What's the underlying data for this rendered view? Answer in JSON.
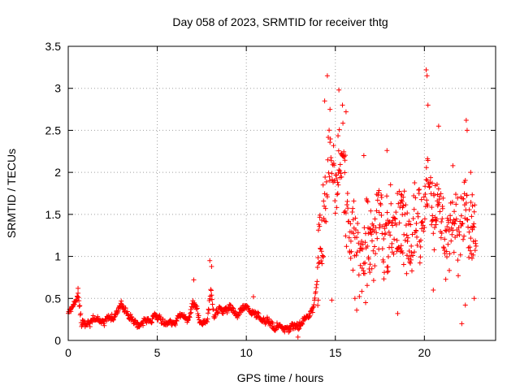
{
  "chart_data": {
    "type": "scatter",
    "title": "Day 058 of 2023, SRMTID for receiver thtg",
    "xlabel": "GPS time / hours",
    "ylabel": "SRMTID / TECUs",
    "xlim": [
      0,
      24
    ],
    "ylim": [
      0,
      3.5
    ],
    "grid": true,
    "xticks": [
      0,
      5,
      10,
      15,
      20
    ],
    "xtick_labels": [
      "0",
      "5",
      "10",
      "15",
      "20"
    ],
    "yticks": [
      0,
      0.5,
      1,
      1.5,
      2,
      2.5,
      3,
      3.5
    ],
    "ytick_labels": [
      "0",
      "0.5",
      "1",
      "1.5",
      "2",
      "2.5",
      "3",
      "3.5"
    ],
    "marker": "+",
    "color": "#ff0000",
    "x_range": [
      0,
      22.9
    ],
    "x_step": 0.025,
    "baseline": [
      [
        0.0,
        0.3
      ],
      [
        0.3,
        0.42
      ],
      [
        0.55,
        0.58
      ],
      [
        0.75,
        0.2
      ],
      [
        1.0,
        0.18
      ],
      [
        1.5,
        0.27
      ],
      [
        2.0,
        0.22
      ],
      [
        2.5,
        0.28
      ],
      [
        3.0,
        0.42
      ],
      [
        3.3,
        0.34
      ],
      [
        3.6,
        0.22
      ],
      [
        4.0,
        0.2
      ],
      [
        4.4,
        0.22
      ],
      [
        4.8,
        0.28
      ],
      [
        5.2,
        0.25
      ],
      [
        5.6,
        0.2
      ],
      [
        6.0,
        0.22
      ],
      [
        6.3,
        0.3
      ],
      [
        6.7,
        0.25
      ],
      [
        7.0,
        0.42
      ],
      [
        7.2,
        0.38
      ],
      [
        7.4,
        0.24
      ],
      [
        7.8,
        0.18
      ],
      [
        8.0,
        0.6
      ],
      [
        8.2,
        0.3
      ],
      [
        8.5,
        0.36
      ],
      [
        9.0,
        0.38
      ],
      [
        9.5,
        0.32
      ],
      [
        10.0,
        0.4
      ],
      [
        10.5,
        0.3
      ],
      [
        11.0,
        0.24
      ],
      [
        11.5,
        0.18
      ],
      [
        12.0,
        0.15
      ],
      [
        12.5,
        0.14
      ],
      [
        13.0,
        0.2
      ],
      [
        13.5,
        0.3
      ],
      [
        13.8,
        0.42
      ],
      [
        14.0,
        0.7
      ],
      [
        14.2,
        1.2
      ],
      [
        14.5,
        1.9
      ],
      [
        15.0,
        2.1
      ],
      [
        15.3,
        2.2
      ],
      [
        15.7,
        1.5
      ],
      [
        16.0,
        1.25
      ],
      [
        16.5,
        1.05
      ],
      [
        17.0,
        1.2
      ],
      [
        17.5,
        1.4
      ],
      [
        18.0,
        1.2
      ],
      [
        18.5,
        1.35
      ],
      [
        19.0,
        1.2
      ],
      [
        19.5,
        1.3
      ],
      [
        20.0,
        1.45
      ],
      [
        20.3,
        1.9
      ],
      [
        20.6,
        1.5
      ],
      [
        21.0,
        1.3
      ],
      [
        21.5,
        1.2
      ],
      [
        22.0,
        1.4
      ],
      [
        22.5,
        1.5
      ],
      [
        22.9,
        1.1
      ]
    ],
    "peaks": [
      [
        0.55,
        0.62
      ],
      [
        7.05,
        0.72
      ],
      [
        7.95,
        0.95
      ],
      [
        8.05,
        0.88
      ],
      [
        10.4,
        0.52
      ],
      [
        14.4,
        2.85
      ],
      [
        14.55,
        3.15
      ],
      [
        14.7,
        2.75
      ],
      [
        15.2,
        2.98
      ],
      [
        15.4,
        2.8
      ],
      [
        15.6,
        2.72
      ],
      [
        16.6,
        2.2
      ],
      [
        17.9,
        2.26
      ],
      [
        20.1,
        3.22
      ],
      [
        20.15,
        3.15
      ],
      [
        20.2,
        2.8
      ],
      [
        20.8,
        2.55
      ],
      [
        21.6,
        2.08
      ],
      [
        22.35,
        2.62
      ],
      [
        22.4,
        2.5
      ],
      [
        22.6,
        2.0
      ],
      [
        22.7,
        1.6
      ]
    ],
    "troughs": [
      [
        12.9,
        0.04
      ],
      [
        14.8,
        0.48
      ],
      [
        16.1,
        0.5
      ],
      [
        16.2,
        0.36
      ],
      [
        16.7,
        0.45
      ],
      [
        18.5,
        0.32
      ],
      [
        20.5,
        0.6
      ],
      [
        22.1,
        0.2
      ],
      [
        22.3,
        0.42
      ],
      [
        22.8,
        0.5
      ]
    ],
    "quiet_noise_amplitude": 0.05,
    "active_noise_amplitude": 0.6,
    "active_start_hour": 14.0
  }
}
